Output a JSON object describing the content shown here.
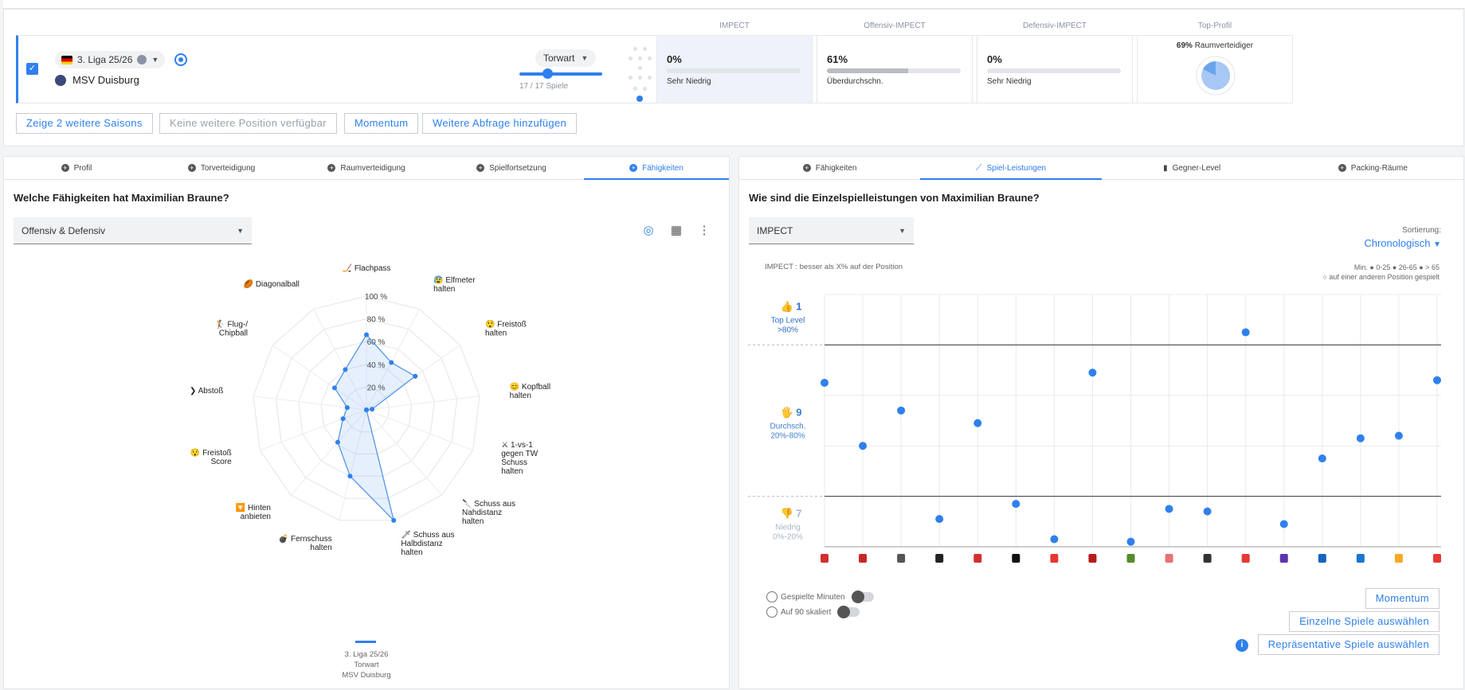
{
  "top": {
    "league": "3. Liga 25/26",
    "club": "MSV Duisburg",
    "position": "Torwart",
    "games": "17 / 17 Spiele",
    "metrics": [
      {
        "head": "IMPECT",
        "value": "0%",
        "level": "Sehr Niedrig",
        "fill": 0
      },
      {
        "head": "Offensiv-IMPECT",
        "value": "61%",
        "level": "Überdurchschn.",
        "fill": 0.61
      },
      {
        "head": "Defensiv-IMPECT",
        "value": "0%",
        "level": "Sehr Niedrig",
        "fill": 0
      }
    ],
    "profile": {
      "head": "Top-Profil",
      "pct": "69%",
      "name": "Raumverteidiger"
    },
    "buttons": {
      "more_seasons": "Zeige 2 weitere Saisons",
      "no_position": "Keine weitere Position verfügbar",
      "momentum": "Momentum",
      "add_query": "Weitere Abfrage hinzufügen"
    }
  },
  "left": {
    "tabs": [
      "Profil",
      "Torverteidigung",
      "Raumverteidigung",
      "Spielfortsetzung",
      "Fähigkeiten"
    ],
    "active_tab": 4,
    "title": "Welche Fähigkeiten hat Maximilian Braune?",
    "select": "Offensiv & Defensiv",
    "legend": {
      "season": "3. Liga 25/26",
      "position": "Torwart",
      "club": "MSV Duisburg"
    }
  },
  "chart_data": [
    {
      "type": "radar",
      "axes": [
        "Flachpass",
        "Elfmeter halten",
        "Freistoß halten",
        "Kopfball halten",
        "1-vs-1 gegen TW Schuss halten",
        "Schuss aus Nahdistanz halten",
        "Schuss aus Halbdistanz halten",
        "Fernschuss halten",
        "Hinten anbieten",
        "Freistoß Score",
        "Abstoß",
        "Flug-/ Chipball",
        "Diagonalball"
      ],
      "values": [
        66,
        47,
        52,
        5,
        0,
        0,
        100,
        60,
        38,
        22,
        17,
        34,
        40
      ],
      "ticks": [
        "20 %",
        "40 %",
        "60 %",
        "80 %",
        "100 %"
      ],
      "series": [
        {
          "name": "3. Liga 25/26",
          "values": [
            66,
            47,
            52,
            5,
            0,
            0,
            100,
            60,
            38,
            22,
            17,
            34,
            40
          ]
        }
      ]
    },
    {
      "type": "scatter",
      "ylabel": "IMPECT",
      "ylim": [
        0,
        100
      ],
      "zones": [
        {
          "label": "Top Level >80%",
          "count": "1"
        },
        {
          "label": "Durchsch. 20%-80%",
          "count": "9"
        },
        {
          "label": "Niedrig 0%-20%",
          "count": "7"
        }
      ],
      "x": [
        1,
        2,
        3,
        4,
        5,
        6,
        7,
        8,
        9,
        10,
        11,
        12,
        13,
        14,
        15,
        16,
        17
      ],
      "values": [
        65,
        40,
        54,
        11,
        49,
        17,
        3,
        69,
        2,
        15,
        14,
        85,
        9,
        35,
        43,
        44,
        66
      ]
    }
  ],
  "right": {
    "tabs": [
      "Fähigkeiten",
      "Spiel-Leistungen",
      "Gegner-Level",
      "Packing-Räume"
    ],
    "active_tab": 1,
    "title": "Wie sind die Einzelspielleistungen von Maximilian Braune?",
    "select": "IMPECT",
    "sort_label": "Sortierung:",
    "sort_value": "Chronologisch",
    "note": "IMPECT : besser als X% auf der Position",
    "min_legend": "Min.  ● 0-25  ● 26-65  ● > 65",
    "other_position": "○ auf einer anderen Position gespielt",
    "toggle_minutes": "Gespielte Minuten",
    "toggle_scaled": "Auf 90 skaliert",
    "buttons": {
      "momentum": "Momentum",
      "single": "Einzelne Spiele auswählen",
      "representative": "Repräsentative Spiele auswählen"
    }
  }
}
